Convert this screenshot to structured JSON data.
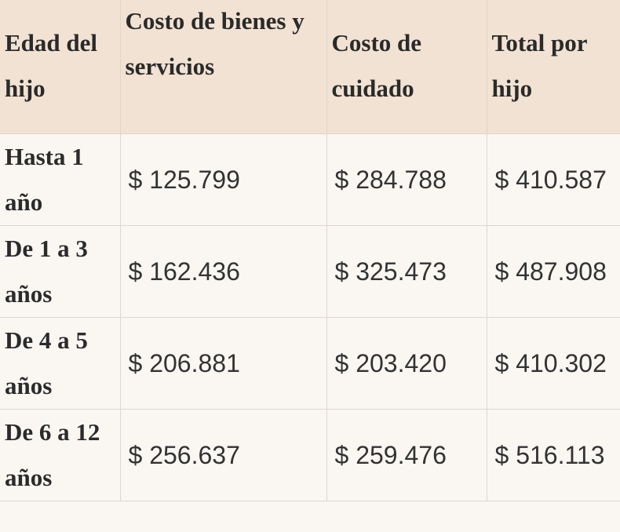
{
  "table": {
    "headers": [
      "Edad del hijo",
      "Costo de bienes y servicios",
      "Costo de cuidado",
      "Total por hijo"
    ],
    "rows": [
      {
        "age": "Hasta 1 año",
        "bienes": "$ 125.799",
        "cuidado": "$ 284.788",
        "total": "$ 410.587"
      },
      {
        "age": "De 1 a 3 años",
        "bienes": "$ 162.436",
        "cuidado": "$ 325.473",
        "total": "$ 487.908"
      },
      {
        "age": "De 4 a 5 años",
        "bienes": "$ 206.881",
        "cuidado": "$ 203.420",
        "total": "$ 410.302"
      },
      {
        "age": "De 6 a 12 años",
        "bienes": "$ 256.637",
        "cuidado": "$ 259.476",
        "total": "$ 516.113"
      }
    ]
  }
}
